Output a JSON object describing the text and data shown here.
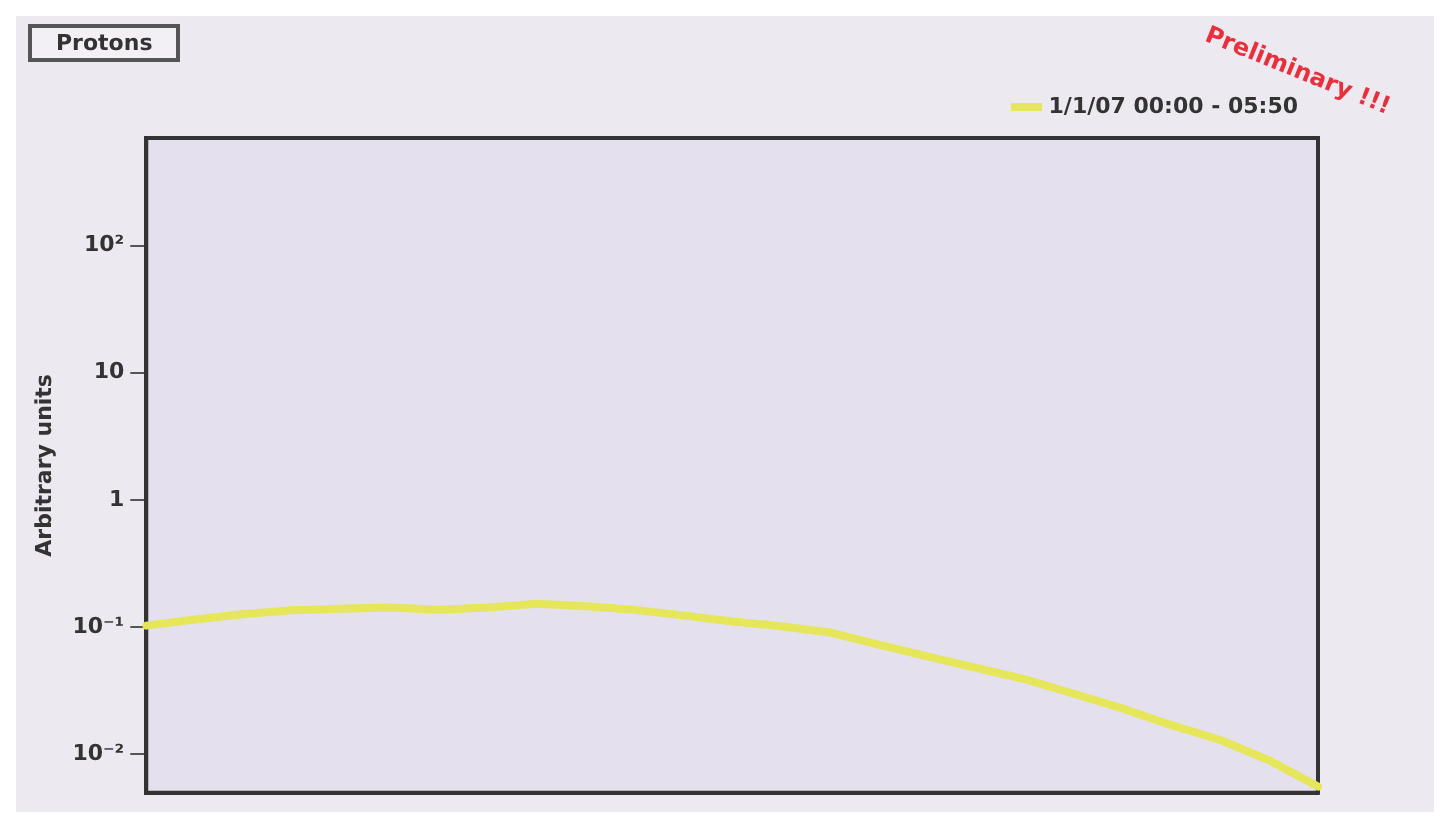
{
  "chart_data": {
    "type": "line",
    "title": "Protons",
    "ylabel": "Arbitrary units",
    "annotations": [
      "Preliminary !!!"
    ],
    "categories": [
      null,
      null,
      null,
      null,
      null,
      null,
      null,
      null,
      null,
      null,
      null,
      null,
      null,
      null,
      null,
      null,
      null,
      null,
      null,
      null,
      null,
      null,
      null,
      null,
      null
    ],
    "series": [
      {
        "name": "1/1/07 00:00 - 05:50",
        "color": "#e6e65a",
        "values": [
          0.103,
          0.115,
          0.127,
          0.136,
          0.14,
          0.143,
          0.137,
          0.143,
          0.153,
          0.146,
          0.137,
          0.124,
          0.111,
          0.102,
          0.091,
          0.073,
          0.059,
          0.048,
          0.039,
          0.03,
          0.023,
          0.017,
          0.013,
          0.009,
          0.0056
        ]
      }
    ],
    "log": "y",
    "ylim": [
      0.005,
      700
    ],
    "yticks": [
      {
        "value": 0.01,
        "label": "10⁻²"
      },
      {
        "value": 0.1,
        "label": "10⁻¹"
      },
      1,
      10,
      {
        "value": 100,
        "label": "10²"
      }
    ],
    "tick_labels": "y",
    "legend": "top right",
    "marker": "none",
    "line_style": "solid",
    "grid": false
  }
}
